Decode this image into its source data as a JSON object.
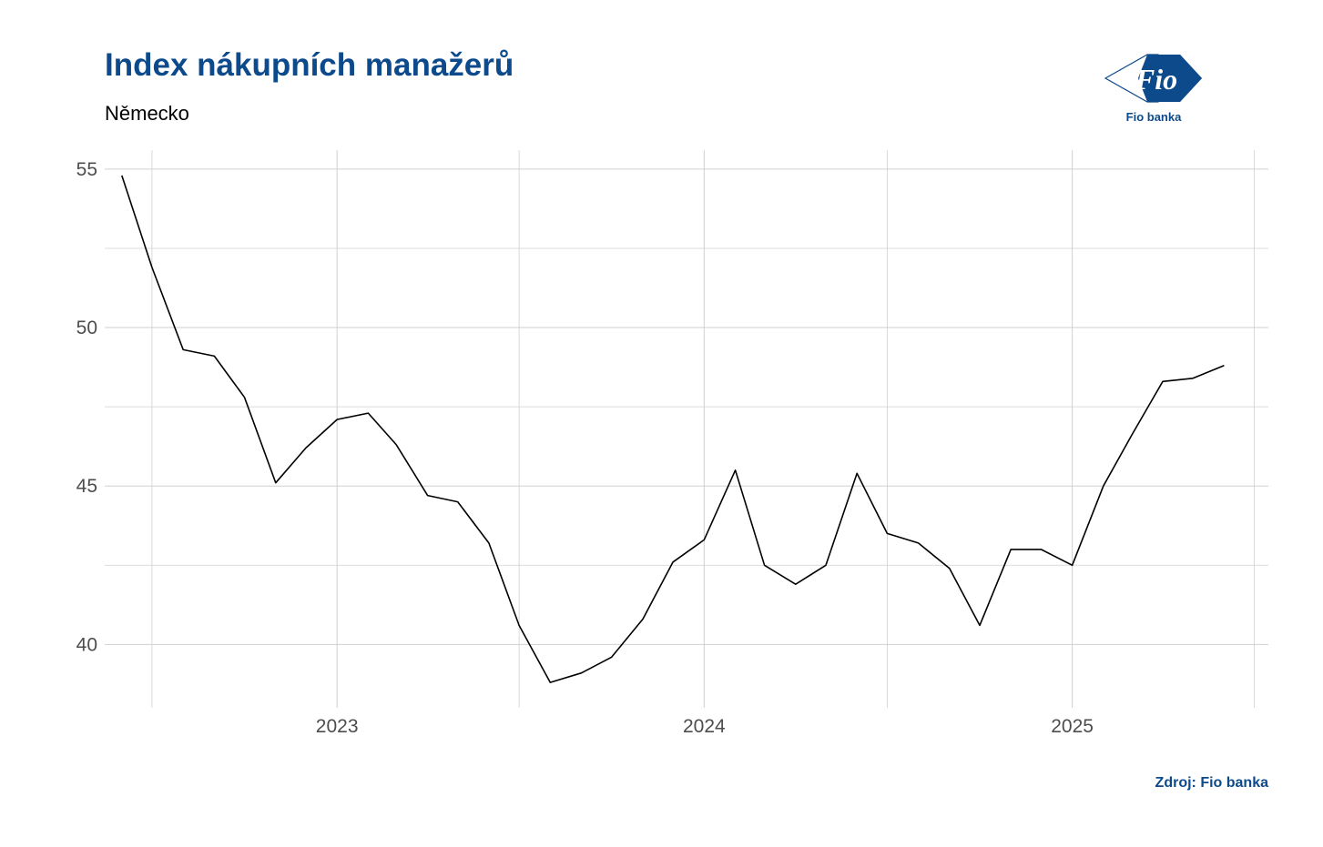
{
  "title": "Index nákupních manažerů",
  "subtitle": "Německo",
  "logo": {
    "mark": "Fio",
    "text": "Fio banka"
  },
  "source": "Zdroj: Fio banka",
  "colors": {
    "title": "#0c4a8c",
    "line": "#000000",
    "grid": "#d0d0d0"
  },
  "chart_data": {
    "type": "line",
    "title": "Index nákupních manažerů",
    "subtitle": "Německo",
    "xlabel": "",
    "ylabel": "",
    "ylim": [
      38,
      55.6
    ],
    "xlim": [
      "2022-05-15",
      "2025-07-15"
    ],
    "grid": true,
    "y_ticks": [
      40,
      45,
      50,
      55
    ],
    "x_ticks": [
      {
        "label": "2023",
        "date": "2023-01-01"
      },
      {
        "label": "2024",
        "date": "2024-01-01"
      },
      {
        "label": "2025",
        "date": "2025-01-01"
      }
    ],
    "x_minor_dates": [
      "2022-07-01",
      "2023-07-01",
      "2024-07-01",
      "2025-07-01"
    ],
    "series": [
      {
        "color": "#000000",
        "x": [
          "2022-06-01",
          "2022-07-01",
          "2022-08-01",
          "2022-09-01",
          "2022-10-01",
          "2022-11-01",
          "2022-12-01",
          "2023-01-01",
          "2023-02-01",
          "2023-03-01",
          "2023-04-01",
          "2023-05-01",
          "2023-06-01",
          "2023-07-01",
          "2023-08-01",
          "2023-09-01",
          "2023-10-01",
          "2023-11-01",
          "2023-12-01",
          "2024-01-01",
          "2024-02-01",
          "2024-03-01",
          "2024-04-01",
          "2024-05-01",
          "2024-06-01",
          "2024-07-01",
          "2024-08-01",
          "2024-09-01",
          "2024-10-01",
          "2024-11-01",
          "2024-12-01",
          "2025-01-01",
          "2025-02-01",
          "2025-03-01",
          "2025-04-01",
          "2025-05-01",
          "2025-06-01"
        ],
        "values": [
          54.8,
          51.9,
          49.3,
          49.1,
          47.8,
          45.1,
          46.2,
          47.1,
          47.3,
          46.3,
          44.7,
          44.5,
          43.2,
          40.6,
          38.8,
          39.1,
          39.6,
          40.8,
          42.6,
          43.3,
          45.5,
          42.5,
          41.9,
          42.5,
          45.4,
          43.5,
          43.2,
          42.4,
          40.6,
          43.0,
          43.0,
          42.5,
          45.0,
          46.6,
          48.3,
          48.4,
          48.8
        ]
      }
    ]
  }
}
